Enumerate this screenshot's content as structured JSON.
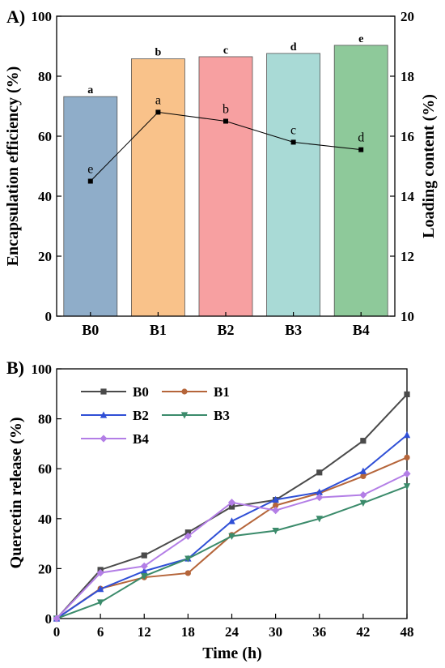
{
  "chart_data": [
    {
      "panel_label": "A)",
      "type": "bar",
      "categories": [
        "B0",
        "B1",
        "B2",
        "B3",
        "B4"
      ],
      "ylabel": "Encapsulation efficiency (%)",
      "y2label": "Loading content (%)",
      "ylim": [
        0,
        100
      ],
      "y2lim": [
        10,
        20
      ],
      "yticks": [
        "0",
        "20",
        "40",
        "60",
        "80",
        "100"
      ],
      "y2ticks": [
        "10",
        "12",
        "14",
        "16",
        "18",
        "20"
      ],
      "bar_values": [
        73.2,
        85.8,
        86.5,
        87.6,
        90.3
      ],
      "bar_letters": [
        "a",
        "b",
        "c",
        "d",
        "e"
      ],
      "bar_colors": [
        "#8fadc9",
        "#f9c28a",
        "#f7a0a1",
        "#a9dad6",
        "#8ec99a"
      ],
      "line_values": [
        14.5,
        16.8,
        16.5,
        15.8,
        15.55
      ],
      "line_letters": [
        "e",
        "a",
        "b",
        "c",
        "d"
      ],
      "grid": false
    },
    {
      "panel_label": "B)",
      "type": "line",
      "xlabel": "Time (h)",
      "ylabel": "Quercetin release (%)",
      "x": [
        0,
        6,
        12,
        18,
        24,
        30,
        36,
        42,
        48
      ],
      "xticks": [
        "0",
        "6",
        "12",
        "18",
        "24",
        "30",
        "36",
        "42",
        "48"
      ],
      "yticks": [
        "0",
        "20",
        "40",
        "60",
        "80",
        "100"
      ],
      "xlim": [
        0,
        48
      ],
      "ylim": [
        0,
        100
      ],
      "legend_position": "top-left",
      "grid": false,
      "series": [
        {
          "name": "B0",
          "color": "#4a4a4a",
          "marker": "square",
          "values": [
            0,
            19.5,
            25.3,
            34.5,
            44.8,
            47.5,
            58.5,
            71.2,
            89.8
          ]
        },
        {
          "name": "B1",
          "color": "#b5653a",
          "marker": "circle",
          "values": [
            0,
            12.0,
            16.5,
            18.2,
            33.5,
            45.3,
            50.2,
            57.0,
            64.5
          ]
        },
        {
          "name": "B2",
          "color": "#2f4fd6",
          "marker": "triangle",
          "values": [
            0,
            11.8,
            19.0,
            24.0,
            39.0,
            47.6,
            50.6,
            59.0,
            73.5
          ]
        },
        {
          "name": "B3",
          "color": "#3b8b6b",
          "marker": "tri-down",
          "values": [
            0,
            6.5,
            17.0,
            24.0,
            33.0,
            35.2,
            40.0,
            46.3,
            53.0
          ]
        },
        {
          "name": "B4",
          "color": "#b37ee6",
          "marker": "diamond",
          "values": [
            0,
            18.3,
            21.0,
            33.0,
            46.5,
            43.3,
            48.5,
            49.5,
            58.0
          ]
        }
      ]
    }
  ]
}
